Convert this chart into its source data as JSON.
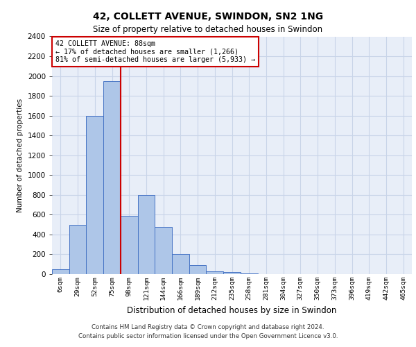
{
  "title_line1": "42, COLLETT AVENUE, SWINDON, SN2 1NG",
  "title_line2": "Size of property relative to detached houses in Swindon",
  "xlabel": "Distribution of detached houses by size in Swindon",
  "ylabel": "Number of detached properties",
  "footer_line1": "Contains HM Land Registry data © Crown copyright and database right 2024.",
  "footer_line2": "Contains public sector information licensed under the Open Government Licence v3.0.",
  "categories": [
    "6sqm",
    "29sqm",
    "52sqm",
    "75sqm",
    "98sqm",
    "121sqm",
    "144sqm",
    "166sqm",
    "189sqm",
    "212sqm",
    "235sqm",
    "258sqm",
    "281sqm",
    "304sqm",
    "327sqm",
    "350sqm",
    "373sqm",
    "396sqm",
    "419sqm",
    "442sqm",
    "465sqm"
  ],
  "values": [
    50,
    500,
    1600,
    1950,
    590,
    800,
    480,
    200,
    90,
    30,
    20,
    10,
    0,
    0,
    0,
    0,
    0,
    0,
    0,
    0,
    0
  ],
  "ylim": [
    0,
    2400
  ],
  "yticks": [
    0,
    200,
    400,
    600,
    800,
    1000,
    1200,
    1400,
    1600,
    1800,
    2000,
    2200,
    2400
  ],
  "bar_color": "#aec6e8",
  "bar_edge_color": "#4472c4",
  "grid_color": "#c8d4e8",
  "background_color": "#e8eef8",
  "annotation_title": "42 COLLETT AVENUE: 88sqm",
  "annotation_line2": "← 17% of detached houses are smaller (1,266)",
  "annotation_line3": "81% of semi-detached houses are larger (5,933) →",
  "annotation_box_color": "#cc0000",
  "property_sqm": 88,
  "bin_starts": [
    6,
    29,
    52,
    75,
    98,
    121,
    144,
    166,
    189,
    212,
    235,
    258,
    281,
    304,
    327,
    350,
    373,
    396,
    419,
    442,
    465
  ]
}
